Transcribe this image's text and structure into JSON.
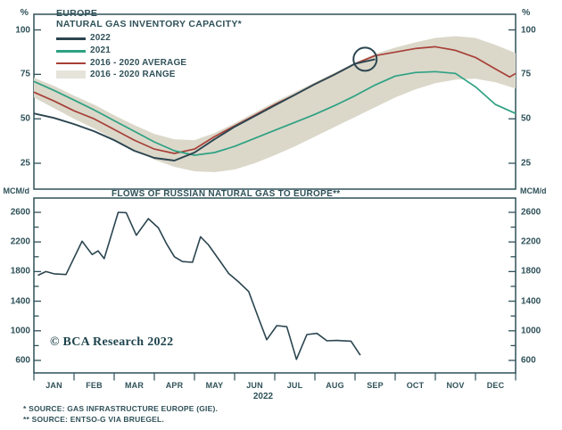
{
  "colors": {
    "frame": "#2f5159",
    "text": "#2f5159",
    "series_2022": "#2b4550",
    "series_2021": "#2fa183",
    "series_avg": "#a84038",
    "range_band": "#dbd8ca",
    "watermark": "#1f444d"
  },
  "top_chart": {
    "title_line1": "EUROPE",
    "title_line2": "NATURAL GAS INVENTORY CAPACITY*",
    "unit_left": "%",
    "unit_right": "%"
  },
  "bottom_chart": {
    "title": "FLOWS OF RUSSIAN NATURAL GAS TO EUROPE**",
    "unit_left": "MCM/d",
    "unit_right": "MCM/d"
  },
  "x_axis": {
    "months": [
      "JAN",
      "FEB",
      "MAR",
      "APR",
      "MAY",
      "JUN",
      "JUL",
      "AUG",
      "SEP",
      "OCT",
      "NOV",
      "DEC"
    ],
    "year": "2022"
  },
  "watermark": "© BCA Research 2022",
  "footnotes": {
    "line1": "*  SOURCE: GAS INFRASTRUCTURE EUROPE (GIE).",
    "line2": "** SOURCE: ENTSO-G VIA BRUEGEL."
  },
  "chart_data": [
    {
      "type": "line",
      "title": "EUROPE NATURAL GAS INVENTORY CAPACITY*",
      "ylabel": "%",
      "ylim": [
        10,
        109
      ],
      "yticks": [
        25,
        50,
        75,
        100
      ],
      "x_unit": "month index (0 = Jan 1, 12 = Dec 31)",
      "legend_position": "top-left",
      "grid": false,
      "series": [
        {
          "name": "2022",
          "color": "#2b4550",
          "x": [
            0,
            0.5,
            1,
            1.5,
            2,
            2.5,
            3,
            3.5,
            4,
            4.5,
            5,
            5.5,
            6,
            6.5,
            7,
            7.5,
            8,
            8.5
          ],
          "values": [
            53,
            50.5,
            47,
            43,
            38,
            32,
            28,
            26.5,
            31,
            38.5,
            45.5,
            51.5,
            57.5,
            63.5,
            69.5,
            75,
            81,
            83.5
          ]
        },
        {
          "name": "2021",
          "color": "#2fa183",
          "x": [
            0,
            0.5,
            1,
            1.5,
            2,
            2.5,
            3,
            3.5,
            4,
            4.5,
            5,
            5.5,
            6,
            6.5,
            7,
            7.5,
            8,
            8.5,
            9,
            9.5,
            10,
            10.5,
            11,
            11.5,
            12
          ],
          "values": [
            71,
            66,
            60.5,
            55,
            49,
            43,
            37,
            32,
            29.5,
            31,
            34.5,
            39,
            43.5,
            48,
            52.5,
            57.5,
            63,
            69,
            74,
            76,
            76.5,
            75.5,
            68,
            58,
            53
          ]
        },
        {
          "name": "2016 - 2020 AVERAGE",
          "color": "#a84038",
          "x": [
            0,
            0.5,
            1,
            1.5,
            2,
            2.5,
            3,
            3.5,
            4,
            4.5,
            5,
            5.5,
            6,
            6.5,
            7,
            7.5,
            8,
            8.5,
            9,
            9.5,
            10,
            10.5,
            11,
            11.5,
            11.85,
            12
          ],
          "values": [
            65,
            60,
            54.5,
            50,
            44,
            38,
            33,
            30.5,
            33,
            40,
            46,
            52,
            58,
            63.5,
            69.5,
            75,
            81,
            85.5,
            87.5,
            89.5,
            90.5,
            88.5,
            84.5,
            78,
            73.5,
            75.5
          ]
        },
        {
          "name": "2016 - 2020 RANGE",
          "color": "#dbd8ca",
          "x": [
            0,
            0.5,
            1,
            1.5,
            2,
            2.5,
            3,
            3.5,
            4,
            4.5,
            5,
            5.5,
            6,
            6.5,
            7,
            7.5,
            8,
            8.5,
            9,
            9.5,
            10,
            10.5,
            11,
            11.5,
            12
          ],
          "band_top": [
            73,
            68.5,
            63,
            58,
            52,
            46.5,
            41.5,
            38.5,
            38,
            42,
            47.5,
            53.5,
            59.5,
            65,
            70.5,
            76,
            81.5,
            86.5,
            90,
            93,
            95.5,
            96.5,
            95.5,
            91.5,
            87
          ],
          "band_bottom": [
            62,
            56,
            50,
            44.5,
            38.5,
            32.5,
            27,
            23,
            20.5,
            20,
            21.5,
            25,
            29.5,
            34.5,
            40,
            45.5,
            51,
            56.5,
            62,
            66.5,
            70,
            72,
            72.5,
            70.5,
            67
          ]
        }
      ],
      "annotation": {
        "type": "circle",
        "month_index": 8.25,
        "value": 83.5,
        "radius_px": 13
      }
    },
    {
      "type": "line",
      "title": "FLOWS OF RUSSIAN NATURAL GAS TO EUROPE**",
      "ylabel": "MCM/d",
      "ylim": [
        430,
        2790
      ],
      "yticks": [
        600,
        1000,
        1400,
        1800,
        2200,
        2600
      ],
      "ytick_minor_step": 200,
      "grid": false,
      "series": [
        {
          "name": "RUSSIAN GAS FLOWS",
          "color": "#2b4550",
          "x": [
            0.1,
            0.3,
            0.5,
            0.8,
            1.2,
            1.45,
            1.6,
            1.75,
            2.1,
            2.3,
            2.55,
            2.85,
            3.1,
            3.3,
            3.5,
            3.7,
            3.95,
            4.15,
            4.35,
            4.65,
            4.85,
            5.1,
            5.35,
            5.6,
            5.8,
            6.05,
            6.3,
            6.54,
            6.8,
            7.05,
            7.3,
            7.55,
            7.9,
            8.13
          ],
          "values": [
            1750,
            1800,
            1770,
            1760,
            2210,
            2030,
            2080,
            1975,
            2600,
            2595,
            2290,
            2515,
            2390,
            2180,
            2000,
            1935,
            1925,
            2270,
            2160,
            1930,
            1775,
            1660,
            1530,
            1165,
            880,
            1070,
            1055,
            615,
            950,
            965,
            865,
            870,
            860,
            670
          ]
        }
      ]
    }
  ]
}
